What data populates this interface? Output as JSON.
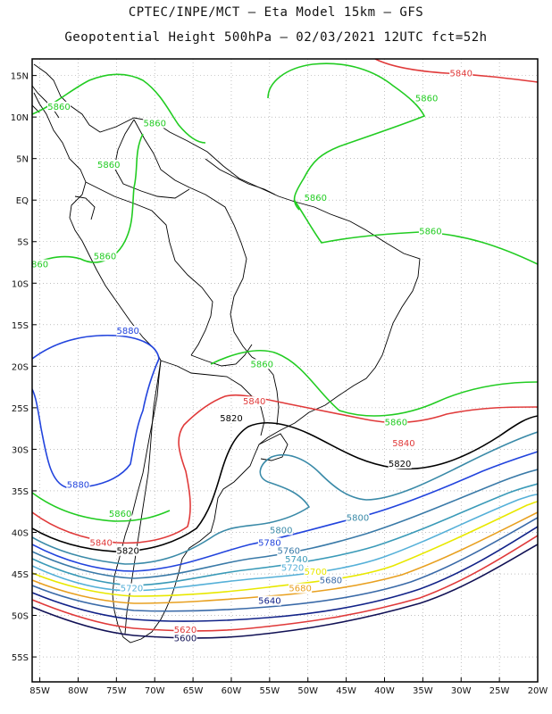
{
  "title": {
    "line1": "CPTEC/INPE/MCT –  Eta Model 15km – GFS",
    "line2": "Geopotential Height 500hPa – 02/03/2021 12UTC fct=52h"
  },
  "axes": {
    "lat_labels": [
      "15N",
      "10N",
      "5N",
      "EQ",
      "5S",
      "10S",
      "15S",
      "20S",
      "25S",
      "30S",
      "35S",
      "40S",
      "45S",
      "50S",
      "55S"
    ],
    "lat_values": [
      15,
      10,
      5,
      0,
      -5,
      -10,
      -15,
      -20,
      -25,
      -30,
      -35,
      -40,
      -45,
      -50,
      -55
    ],
    "lon_labels": [
      "85W",
      "80W",
      "75W",
      "70W",
      "65W",
      "60W",
      "55W",
      "50W",
      "45W",
      "40W",
      "35W",
      "30W",
      "25W",
      "20W"
    ],
    "lon_values": [
      -85,
      -80,
      -75,
      -70,
      -65,
      -60,
      -55,
      -50,
      -45,
      -40,
      -35,
      -30,
      -25,
      -20
    ],
    "lon_range": [
      -86,
      -20
    ],
    "lat_range": [
      -58,
      17
    ],
    "grid": "dotted"
  },
  "colors": {
    "c5880": "#2244dd",
    "c5860": "#22cc22",
    "c5840": "#e03a3a",
    "c5820": "#000000",
    "c5800": "#3a8aa8",
    "c5780": "#2244dd",
    "c5760": "#3a7aa8",
    "c5740": "#3a9ab8",
    "c5720": "#55b0d8",
    "c5700": "#e8e800",
    "c5680": "#e8a020",
    "c5660": "#3a6aa8",
    "c5640": "#112288",
    "c5620": "#e03a3a",
    "c5600": "#111155"
  },
  "contour_labels": [
    {
      "text": "5840",
      "lon": -30,
      "lat": 15,
      "color": "#e03a3a"
    },
    {
      "text": "5860",
      "lon": -82.5,
      "lat": 11,
      "color": "#22cc22"
    },
    {
      "text": "5860",
      "lon": -34.5,
      "lat": 12,
      "color": "#22cc22"
    },
    {
      "text": "5860",
      "lon": -70,
      "lat": 9,
      "color": "#22cc22"
    },
    {
      "text": "5860",
      "lon": -76,
      "lat": 4,
      "color": "#22cc22"
    },
    {
      "text": "5860",
      "lon": -49,
      "lat": 0,
      "color": "#22cc22"
    },
    {
      "text": "5860",
      "lon": -34,
      "lat": -4,
      "color": "#22cc22"
    },
    {
      "text": "5860",
      "lon": -76.5,
      "lat": -7,
      "color": "#22cc22"
    },
    {
      "text": "860",
      "lon": -85,
      "lat": -8,
      "color": "#22cc22"
    },
    {
      "text": "5880",
      "lon": -73.5,
      "lat": -16,
      "color": "#2244dd"
    },
    {
      "text": "5860",
      "lon": -56,
      "lat": -20,
      "color": "#22cc22"
    },
    {
      "text": "5840",
      "lon": -57,
      "lat": -24.5,
      "color": "#e03a3a"
    },
    {
      "text": "5820",
      "lon": -60,
      "lat": -26.5,
      "color": "#000000"
    },
    {
      "text": "5860",
      "lon": -38.5,
      "lat": -27,
      "color": "#22cc22"
    },
    {
      "text": "5840",
      "lon": -37.5,
      "lat": -29.5,
      "color": "#e03a3a"
    },
    {
      "text": "5820",
      "lon": -38,
      "lat": -32,
      "color": "#000000"
    },
    {
      "text": "5880",
      "lon": -80,
      "lat": -34.5,
      "color": "#2244dd"
    },
    {
      "text": "5800",
      "lon": -43.5,
      "lat": -38.5,
      "color": "#3a8aa8"
    },
    {
      "text": "5860",
      "lon": -74.5,
      "lat": -38,
      "color": "#22cc22"
    },
    {
      "text": "5800",
      "lon": -53.5,
      "lat": -40,
      "color": "#3a8aa8"
    },
    {
      "text": "5840",
      "lon": -77,
      "lat": -41.5,
      "color": "#e03a3a"
    },
    {
      "text": "5780",
      "lon": -55,
      "lat": -41.5,
      "color": "#2244dd"
    },
    {
      "text": "5820",
      "lon": -73.5,
      "lat": -42.5,
      "color": "#000000"
    },
    {
      "text": "5760",
      "lon": -52.5,
      "lat": -42.5,
      "color": "#3a7aa8"
    },
    {
      "text": "5740",
      "lon": -51.5,
      "lat": -43.5,
      "color": "#3a9ab8"
    },
    {
      "text": "5720",
      "lon": -52,
      "lat": -44.5,
      "color": "#55b0d8"
    },
    {
      "text": "5700",
      "lon": -49,
      "lat": -45,
      "color": "#e8e800"
    },
    {
      "text": "5680",
      "lon": -47,
      "lat": -46,
      "color": "#3a6aa8"
    },
    {
      "text": "5680",
      "lon": -51,
      "lat": -47,
      "color": "#e8a020"
    },
    {
      "text": "5720",
      "lon": -73,
      "lat": -47,
      "color": "#55b0d8"
    },
    {
      "text": "5640",
      "lon": -55,
      "lat": -48.5,
      "color": "#112288"
    },
    {
      "text": "5620",
      "lon": -66,
      "lat": -52,
      "color": "#e03a3a"
    },
    {
      "text": "5600",
      "lon": -66,
      "lat": -53,
      "color": "#111155"
    }
  ]
}
